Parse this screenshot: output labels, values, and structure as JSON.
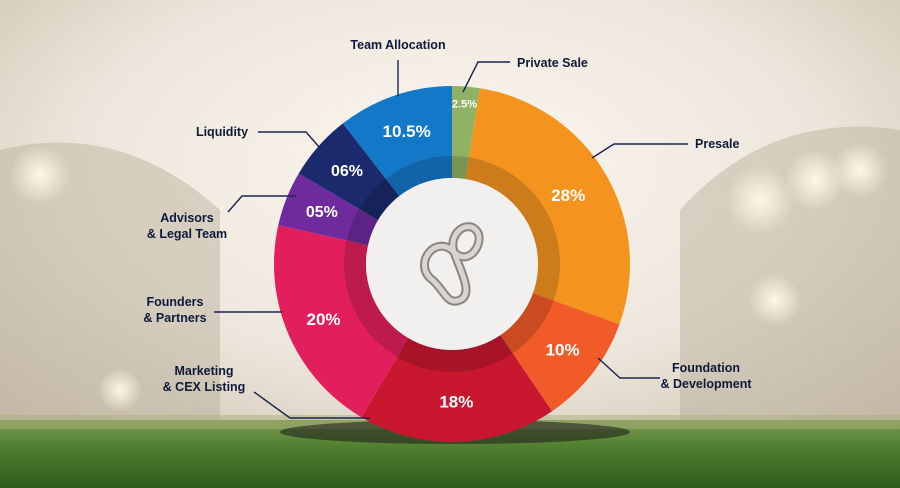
{
  "chart_data": {
    "type": "pie",
    "title": "",
    "categories": [
      "Private Sale",
      "Presale",
      "Foundation & Development",
      "Marketing & CEX Listing",
      "Founders & Partners",
      "Advisors & Legal Team",
      "Liquidity",
      "Team Allocation"
    ],
    "values": [
      2.5,
      28,
      10,
      18,
      20,
      5,
      6,
      10.5
    ],
    "slices": [
      {
        "label_lines": [
          "Private Sale"
        ],
        "value": 2.5,
        "value_label": "2.5%",
        "color": "#8fb265"
      },
      {
        "label_lines": [
          "Presale"
        ],
        "value": 28,
        "value_label": "28%",
        "color": "#f4941f"
      },
      {
        "label_lines": [
          "Foundation",
          "& Development"
        ],
        "value": 10,
        "value_label": "10%",
        "color": "#f15a29"
      },
      {
        "label_lines": [
          "Marketing",
          "& CEX Listing"
        ],
        "value": 18,
        "value_label": "18%",
        "color": "#c8172f"
      },
      {
        "label_lines": [
          "Founders",
          "& Partners"
        ],
        "value": 20,
        "value_label": "20%",
        "color": "#e21f5c"
      },
      {
        "label_lines": [
          "Advisors",
          "& Legal Team"
        ],
        "value": 5,
        "value_label": "05%",
        "color": "#6f2a9e"
      },
      {
        "label_lines": [
          "Liquidity"
        ],
        "value": 6,
        "value_label": "06%",
        "color": "#1a2a6c"
      },
      {
        "label_lines": [
          "Team Allocation"
        ],
        "value": 10.5,
        "value_label": "10.5%",
        "color": "#1478c8"
      }
    ],
    "legend": "callouts around ring",
    "center_icon": "infinity-logo-icon"
  },
  "colors": {
    "callout_text": "#0f1a3a",
    "leader_line": "#1b2550",
    "center": "#f2f0ee",
    "grass": "#4a7a2c"
  }
}
